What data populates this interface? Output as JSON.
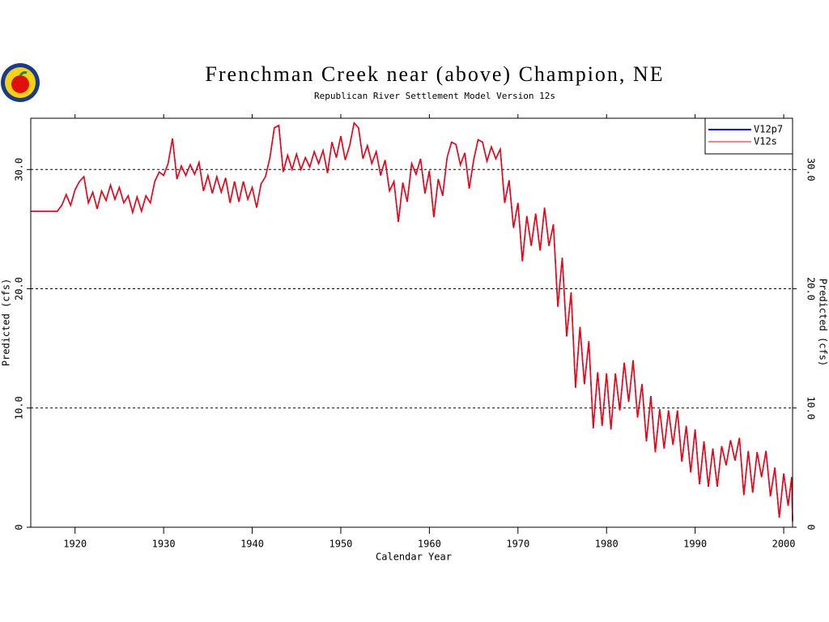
{
  "chart_data": {
    "type": "line",
    "title": "Frenchman Creek near (above) Champion, NE",
    "subtitle": "Republican River Settlement Model Version 12s",
    "xlabel": "Calendar Year",
    "ylabel": "Predicted (cfs)",
    "xlim": [
      1915,
      2001
    ],
    "ylim": [
      0,
      34.3
    ],
    "xticks": [
      1920,
      1930,
      1940,
      1950,
      1960,
      1970,
      1980,
      1990,
      2000
    ],
    "yticks": [
      0,
      {
        "value": 10,
        "label": "10.0"
      },
      {
        "value": 20,
        "label": "20.0"
      },
      {
        "value": 30,
        "label": "30.0"
      }
    ],
    "grid": true,
    "legend": "upper right",
    "x": [
      1915,
      1918,
      1918.5,
      1919,
      1919.5,
      1920,
      1920.5,
      1921,
      1921.5,
      1922,
      1922.5,
      1923,
      1923.5,
      1924,
      1924.5,
      1925,
      1925.5,
      1926,
      1926.5,
      1927,
      1927.5,
      1928,
      1928.5,
      1929,
      1929.5,
      1930,
      1930.5,
      1931,
      1931.5,
      1932,
      1932.5,
      1933,
      1933.5,
      1934,
      1934.5,
      1935,
      1935.5,
      1936,
      1936.5,
      1937,
      1937.5,
      1938,
      1938.5,
      1939,
      1939.5,
      1940,
      1940.5,
      1941,
      1941.5,
      1942,
      1942.5,
      1943,
      1943.5,
      1944,
      1944.5,
      1945,
      1945.5,
      1946,
      1946.5,
      1947,
      1947.5,
      1948,
      1948.5,
      1949,
      1949.5,
      1950,
      1950.5,
      1951,
      1951.5,
      1952,
      1952.5,
      1953,
      1953.5,
      1954,
      1954.5,
      1955,
      1955.5,
      1956,
      1956.5,
      1957,
      1957.5,
      1958,
      1958.5,
      1959,
      1959.5,
      1960,
      1960.5,
      1961,
      1961.5,
      1962,
      1962.5,
      1963,
      1963.5,
      1964,
      1964.5,
      1965,
      1965.5,
      1966,
      1966.5,
      1967,
      1967.5,
      1968,
      1968.5,
      1969,
      1969.5,
      1970,
      1970.5,
      1971,
      1971.5,
      1972,
      1972.5,
      1973,
      1973.5,
      1974,
      1974.5,
      1975,
      1975.5,
      1976,
      1976.5,
      1977,
      1977.5,
      1978,
      1978.5,
      1979,
      1979.5,
      1980,
      1980.5,
      1981,
      1981.5,
      1982,
      1982.5,
      1983,
      1983.5,
      1984,
      1984.5,
      1985,
      1985.5,
      1986,
      1986.5,
      1987,
      1987.5,
      1988,
      1988.5,
      1989,
      1989.5,
      1990,
      1990.5,
      1991,
      1991.5,
      1992,
      1992.5,
      1993,
      1993.5,
      1994,
      1994.5,
      1995,
      1995.5,
      1996,
      1996.5,
      1997,
      1997.5,
      1998,
      1998.5,
      1999,
      1999.5,
      2000,
      2000.5,
      2000.9,
      2001
    ],
    "series": [
      {
        "name": "V12p7",
        "color": "#0000ff",
        "values": [
          26.5,
          26.5,
          27.0,
          27.9,
          27.0,
          28.3,
          29.0,
          29.4,
          27.2,
          28.1,
          26.7,
          28.2,
          27.4,
          28.7,
          27.5,
          28.5,
          27.2,
          27.8,
          26.4,
          27.7,
          26.5,
          27.8,
          27.2,
          29.0,
          29.8,
          29.5,
          30.5,
          32.6,
          29.2,
          30.3,
          29.5,
          30.4,
          29.6,
          30.6,
          28.2,
          29.5,
          28.0,
          29.4,
          28.1,
          29.3,
          27.2,
          29.0,
          27.3,
          29.0,
          27.5,
          28.5,
          26.8,
          28.8,
          29.4,
          31.0,
          33.5,
          33.7,
          29.8,
          31.2,
          30.0,
          31.3,
          30.0,
          31.0,
          30.2,
          31.5,
          30.5,
          31.6,
          29.7,
          32.3,
          31.0,
          32.8,
          30.8,
          32.0,
          33.9,
          33.5,
          30.9,
          32.0,
          30.5,
          31.5,
          29.5,
          30.8,
          28.2,
          29.0,
          25.6,
          28.9,
          27.3,
          30.5,
          29.6,
          30.9,
          28.0,
          29.9,
          26.0,
          29.2,
          27.8,
          31.0,
          32.3,
          32.1,
          30.4,
          31.4,
          28.4,
          30.8,
          32.5,
          32.3,
          30.7,
          31.9,
          30.9,
          31.7,
          27.2,
          29.1,
          25.1,
          27.2,
          22.3,
          26.1,
          23.6,
          26.3,
          23.2,
          26.8,
          23.6,
          25.4,
          18.5,
          22.6,
          16.0,
          19.7,
          11.7,
          16.8,
          12.0,
          15.6,
          8.3,
          13.0,
          8.5,
          12.9,
          8.2,
          12.9,
          9.8,
          13.8,
          10.5,
          14.0,
          9.2,
          12.0,
          7.2,
          11.0,
          6.3,
          9.9,
          6.6,
          9.8,
          6.9,
          9.8,
          5.5,
          8.5,
          4.6,
          8.2,
          3.6,
          7.2,
          3.4,
          6.6,
          3.4,
          6.8,
          5.2,
          7.3,
          5.6,
          7.5,
          2.7,
          6.4,
          2.9,
          6.3,
          4.2,
          6.4,
          2.6,
          5.0,
          0.8,
          4.5,
          1.8,
          4.2,
          0.5
        ]
      },
      {
        "name": "V12s",
        "color": "#ff0000",
        "values": [
          26.5,
          26.5,
          27.0,
          27.9,
          27.0,
          28.3,
          29.0,
          29.4,
          27.2,
          28.1,
          26.7,
          28.2,
          27.4,
          28.7,
          27.5,
          28.5,
          27.2,
          27.8,
          26.4,
          27.7,
          26.5,
          27.8,
          27.2,
          29.0,
          29.8,
          29.5,
          30.5,
          32.6,
          29.2,
          30.3,
          29.5,
          30.4,
          29.6,
          30.6,
          28.2,
          29.5,
          28.0,
          29.4,
          28.1,
          29.3,
          27.2,
          29.0,
          27.3,
          29.0,
          27.5,
          28.5,
          26.8,
          28.8,
          29.4,
          31.0,
          33.5,
          33.7,
          29.8,
          31.2,
          30.0,
          31.3,
          30.0,
          31.0,
          30.2,
          31.5,
          30.5,
          31.6,
          29.7,
          32.3,
          31.0,
          32.8,
          30.8,
          32.0,
          33.9,
          33.5,
          30.9,
          32.0,
          30.5,
          31.5,
          29.5,
          30.8,
          28.2,
          29.0,
          25.6,
          28.9,
          27.3,
          30.5,
          29.6,
          30.9,
          28.0,
          29.9,
          26.0,
          29.2,
          27.8,
          31.0,
          32.3,
          32.1,
          30.4,
          31.4,
          28.4,
          30.8,
          32.5,
          32.3,
          30.7,
          31.9,
          30.9,
          31.7,
          27.2,
          29.1,
          25.1,
          27.2,
          22.3,
          26.1,
          23.6,
          26.3,
          23.2,
          26.8,
          23.6,
          25.4,
          18.5,
          22.6,
          16.0,
          19.7,
          11.7,
          16.8,
          12.0,
          15.6,
          8.3,
          13.0,
          8.5,
          12.9,
          8.2,
          12.9,
          9.8,
          13.8,
          10.5,
          14.0,
          9.2,
          12.0,
          7.2,
          11.0,
          6.3,
          9.9,
          6.6,
          9.8,
          6.9,
          9.8,
          5.5,
          8.5,
          4.6,
          8.2,
          3.6,
          7.2,
          3.4,
          6.6,
          3.4,
          6.8,
          5.2,
          7.3,
          5.6,
          7.5,
          2.7,
          6.4,
          2.9,
          6.3,
          4.2,
          6.4,
          2.6,
          5.0,
          0.8,
          4.5,
          1.8,
          4.2,
          0.5
        ]
      }
    ]
  }
}
